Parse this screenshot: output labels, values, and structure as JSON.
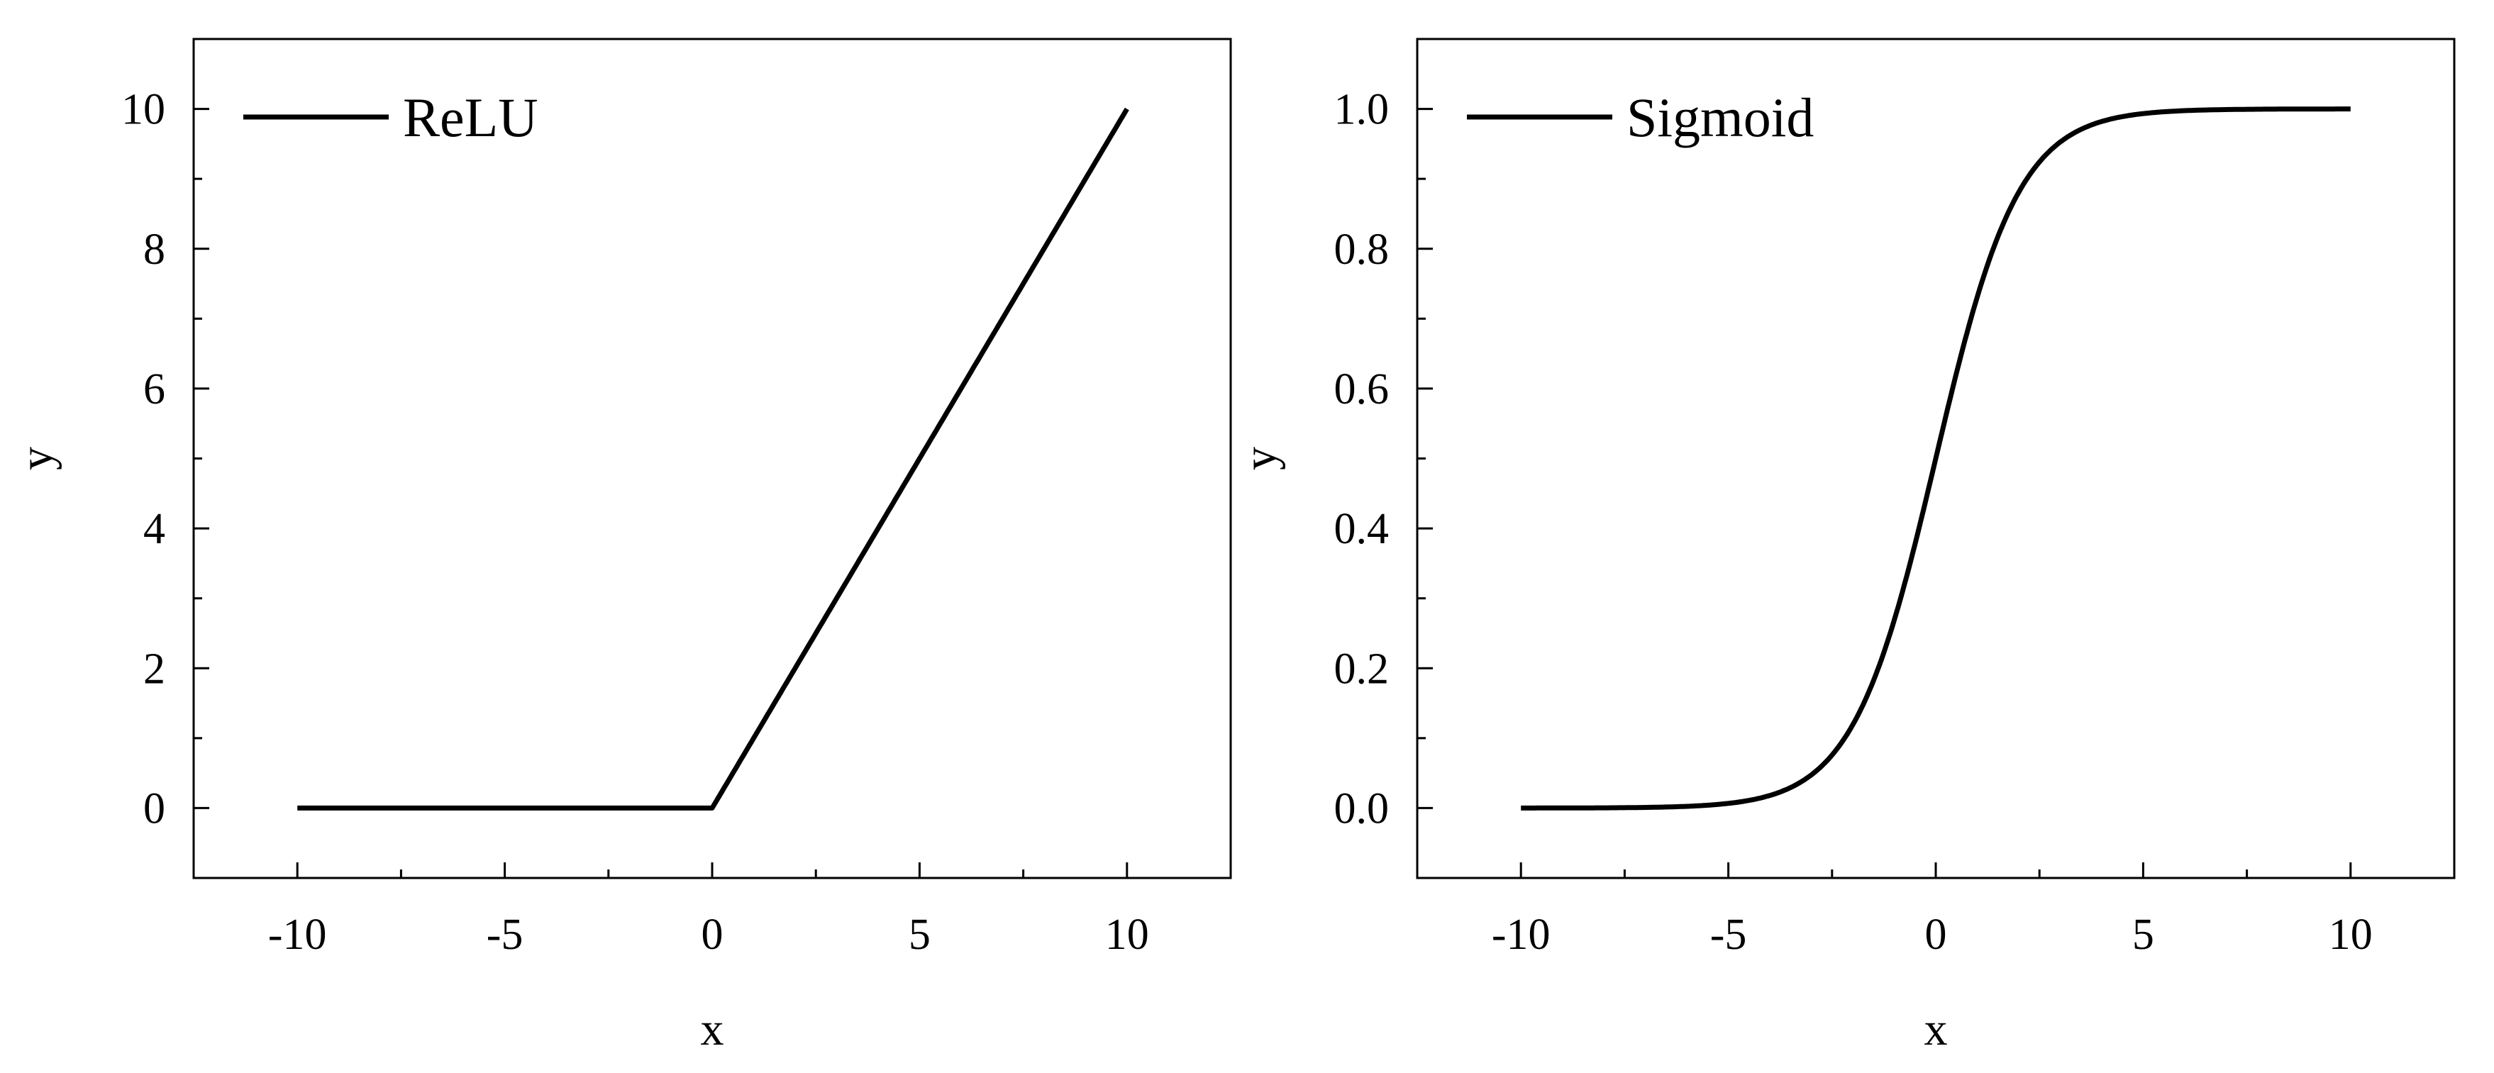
{
  "chart_data": [
    {
      "type": "line",
      "function": "ReLU",
      "x": [
        -10,
        -5,
        0,
        5,
        10
      ],
      "series": [
        {
          "name": "ReLU",
          "x": [
            -10,
            -5,
            0,
            5,
            10
          ],
          "y": [
            0,
            0,
            0,
            5,
            10
          ],
          "color": "#000000"
        }
      ],
      "xlabel": "x",
      "ylabel": "y",
      "xlim": [
        -12.5,
        12.5
      ],
      "ylim": [
        -1,
        11
      ],
      "xticks": [
        -10,
        -5,
        0,
        5,
        10
      ],
      "xtick_labels": [
        "-10",
        "-5",
        "0",
        "5",
        "10"
      ],
      "yticks": [
        0,
        2,
        4,
        6,
        8,
        10
      ],
      "ytick_labels": [
        "0",
        "2",
        "4",
        "6",
        "8",
        "10"
      ],
      "grid": false,
      "legend": "top-left"
    },
    {
      "type": "line",
      "function": "Sigmoid",
      "x": [
        -10,
        -5,
        0,
        5,
        10
      ],
      "series": [
        {
          "name": "Sigmoid",
          "x": [
            -10,
            -5,
            -2,
            0,
            2,
            5,
            10
          ],
          "y": [
            0.0,
            0.007,
            0.12,
            0.5,
            0.88,
            0.993,
            1.0
          ],
          "color": "#000000"
        }
      ],
      "xlabel": "x",
      "ylabel": "y",
      "xlim": [
        -12.5,
        12.5
      ],
      "ylim": [
        -0.1,
        1.1
      ],
      "xticks": [
        -10,
        -5,
        0,
        5,
        10
      ],
      "xtick_labels": [
        "-10",
        "-5",
        "0",
        "5",
        "10"
      ],
      "yticks": [
        0.0,
        0.2,
        0.4,
        0.6,
        0.8,
        1.0
      ],
      "ytick_labels": [
        "0.0",
        "0.2",
        "0.4",
        "0.6",
        "0.8",
        "1.0"
      ],
      "grid": false,
      "legend": "top-left"
    }
  ]
}
